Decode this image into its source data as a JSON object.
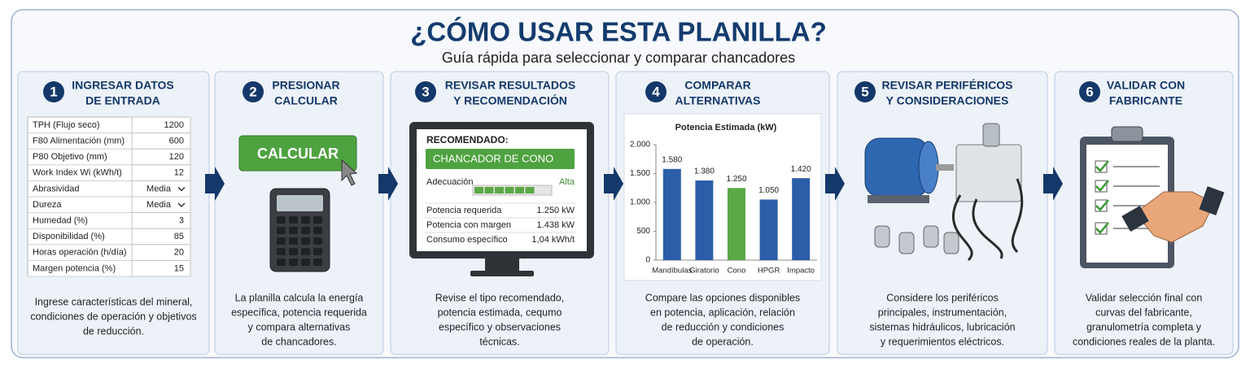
{
  "header": {
    "title": "¿CÓMO USAR ESTA PLANILLA?",
    "subtitle": "Guía rápida para seleccionar y comparar chancadores"
  },
  "steps": [
    {
      "number": "1",
      "title_lines": [
        "INGRESAR DATOS",
        "DE ENTRADA"
      ],
      "table": [
        [
          "TPH (Flujo seco)",
          "1200"
        ],
        [
          "F80 Alimentación (mm)",
          "600"
        ],
        [
          "P80 Objetivo (mm)",
          "120"
        ],
        [
          "Work Index Wi (kWh/t)",
          "12"
        ],
        [
          "Abrasividad",
          "Media"
        ],
        [
          "Dureza",
          "Media"
        ],
        [
          "Humedad (%)",
          "3"
        ],
        [
          "Disponibilidad (%)",
          "85"
        ],
        [
          "Horas operación (h/día)",
          "20"
        ],
        [
          "Margen potencia (%)",
          "15"
        ]
      ],
      "description_lines": [
        "Ingrese características del mineral,",
        "condiciones de operación y objetivos",
        "de reducción."
      ]
    },
    {
      "number": "2",
      "title_lines": [
        "PRESIONAR",
        "CALCULAR"
      ],
      "button": "CALCULAR",
      "description_lines": [
        "La planilla calcula la energía",
        "específica, potencia requerida",
        "y compara alternativas",
        "de chancadores."
      ]
    },
    {
      "number": "3",
      "title_lines": [
        "REVISAR RESULTADOS",
        "Y RECOMENDACIÓN"
      ],
      "screen": {
        "heading": "RECOMENDADO:",
        "recommended": "CHANCADOR DE CONO",
        "fit_label": "Adecuación",
        "fit_value": "Alta",
        "rows": [
          [
            "Potencia requerida",
            "1.250 kW"
          ],
          [
            "Potencia con margen",
            "1.438 kW"
          ],
          [
            "Consumo específico",
            "1,04 kWh/t"
          ]
        ]
      },
      "description_lines": [
        "Revise el tipo recomendado,",
        "potencia estimada, cequmo",
        "específico y observaciones",
        "técnicas."
      ]
    },
    {
      "number": "4",
      "title_lines": [
        "COMPARAR",
        "ALTERNATIVAS"
      ],
      "chart": {
        "type": "bar",
        "title": "Potencia Estimada (kW)",
        "categories": [
          "Mandíbulas",
          "Giratorio",
          "Cono",
          "HPGR",
          "Impacto"
        ],
        "values": [
          1580,
          1380,
          1250,
          1050,
          1420
        ],
        "value_labels": [
          "1.580",
          "1.380",
          "1.250",
          "1.050",
          "1.420"
        ],
        "colors": [
          "#2b5ea8",
          "#2b5ea8",
          "#5aa846",
          "#2b5ea8",
          "#2b5ea8"
        ],
        "ylim": [
          0,
          2000
        ],
        "yticks": [
          0,
          500,
          {
            "value": 1000,
            "label": "1.000"
          },
          {
            "value": 1500,
            "label": "1.500"
          },
          {
            "value": 2000,
            "label": "2.000"
          }
        ]
      },
      "description_lines": [
        "Compare las opciones disponibles",
        "en potencia, aplicación, relación",
        "de reducción y condiciones",
        "de operación."
      ]
    },
    {
      "number": "5",
      "title_lines": [
        "REVISAR PERIFÉRICOS",
        "Y CONSIDERACIONES"
      ],
      "description_lines": [
        "Considere los periféricos",
        "principales, instrumentación,",
        "sistemas hidráulicos, lubricación",
        "y requerimientos eléctricos."
      ]
    },
    {
      "number": "6",
      "title_lines": [
        "VALIDAR CON",
        "FABRICANTE"
      ],
      "description_lines": [
        "Validar selección final con",
        "curvas del fabricante,",
        "granulometría completa y",
        "condiciones reales de la planta."
      ]
    }
  ]
}
